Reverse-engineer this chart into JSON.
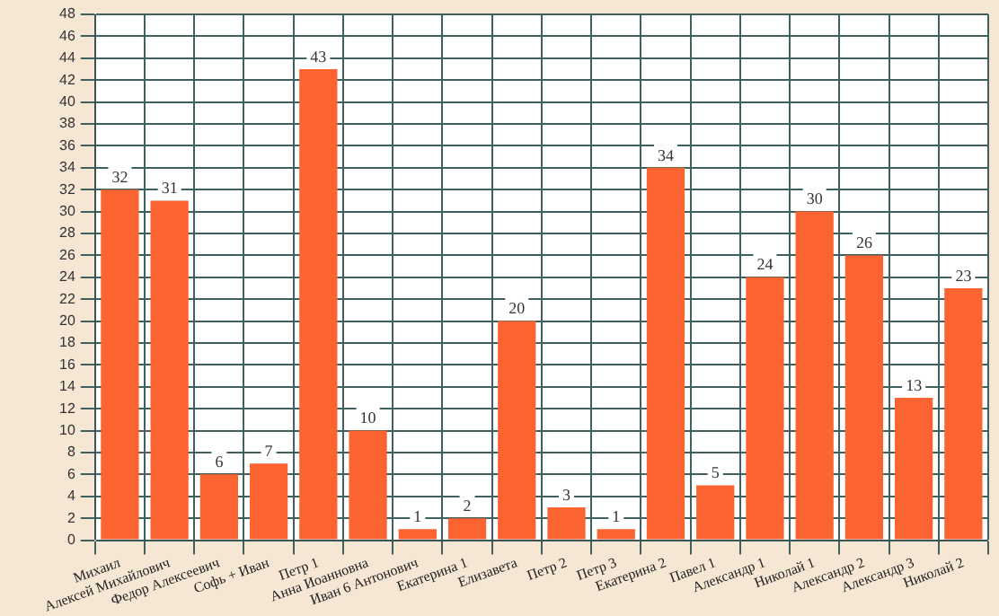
{
  "chart_data": {
    "type": "bar",
    "categories": [
      "Михаил",
      "Алексей Михайлович",
      "Федор Алексеевич",
      "Софь + Иван",
      "Петр 1",
      "Анна Иоанновна",
      "Иван 6 Антонович",
      "Екатерина 1",
      "Елизавета",
      "Петр 2",
      "Петр 3",
      "Екатерина 2",
      "Павел 1",
      "Александр 1",
      "Николай 1",
      "Александр 2",
      "Александр 3",
      "Николай 2"
    ],
    "values": [
      32,
      31,
      6,
      7,
      43,
      10,
      1,
      2,
      20,
      3,
      1,
      34,
      5,
      24,
      30,
      26,
      13,
      23
    ],
    "color": "#fb6330",
    "ylim": [
      0,
      48
    ],
    "yticks": [
      0,
      2,
      4,
      6,
      8,
      10,
      12,
      14,
      16,
      18,
      20,
      22,
      24,
      26,
      28,
      30,
      32,
      34,
      36,
      38,
      40,
      42,
      44,
      46,
      48
    ],
    "grid": true,
    "data_labels": true,
    "legend": false
  }
}
